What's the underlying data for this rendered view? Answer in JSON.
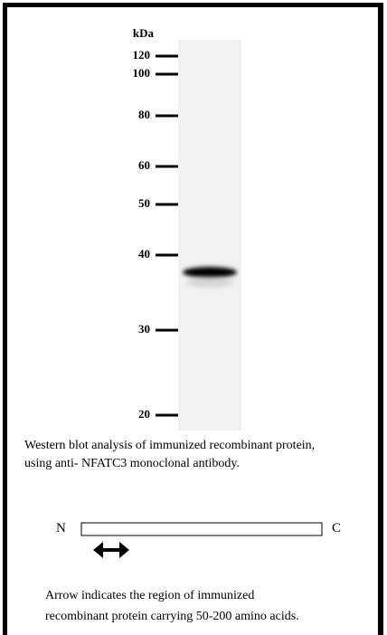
{
  "blot": {
    "unit": "kDa",
    "markers": [
      120,
      100,
      80,
      60,
      50,
      40,
      30,
      20
    ]
  },
  "caption": [
    "Western blot analysis of immunized recombinant protein,",
    "using anti- NFATC3 monoclonal antibody."
  ],
  "schematic": {
    "n_label": "N",
    "c_label": "C"
  },
  "note": [
    "Arrow indicates the region of immunized",
    "recombinant protein carrying 50-200 amino acids."
  ]
}
